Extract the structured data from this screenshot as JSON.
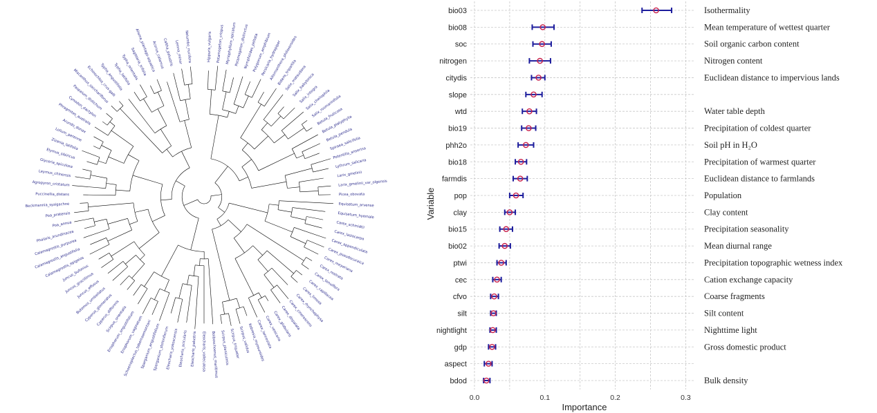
{
  "chart_data": [
    {
      "type": "tree",
      "layout": "circular",
      "label_color": "#2b2b8c",
      "branch_color": "#000000",
      "leaves": [
        "Hippuris_vulgaris",
        "Potamogeton_crispus",
        "Myriophyllum_spicatum",
        "Potamogeton_distinctus",
        "Nymphoides_peltata",
        "Polygonum_amphibium",
        "Persicaria_hydropiper",
        "Alternanthera_philoxeroides",
        "Bidens_tripartita",
        "Salix_matsudana",
        "Salix_babylonica",
        "Salix_integra",
        "Salix_cheilophila",
        "Salix_rosmarinifolia",
        "Betula_fruticosa",
        "Betula_platyphylla",
        "Betula_pendula",
        "Spiraea_salicifolia",
        "Potentilla_anserina",
        "Lythrum_salicaria",
        "Larix_gmelinii",
        "Larix_gmelinii_var_olgensis",
        "Picea_obovata",
        "Equisetum_arvense",
        "Equisetum_hyemale",
        "Carex_schmidtii",
        "Carex_lasiocarpa",
        "Carex_appendiculata",
        "Carex_pseudocuraica",
        "Carex_meyeriana",
        "Carex_rostrata",
        "Carex_tenuiflora",
        "Carex_capillacea",
        "Carex_limosa",
        "Carex_rhynchophysa",
        "Carex_cinerascens",
        "Carex_dispalata",
        "Carex_globularis",
        "Carex_vesicaria",
        "Carex_lanceolata",
        "Kobresia_myosuroides",
        "Scirpus_validus",
        "Scirpus_triqueter",
        "Scirpus_planiculmis",
        "Bolboschoenus_maritimus",
        "Eleocharis_valleculosa",
        "Eleocharis_palustris",
        "Eleocharis_acicularis",
        "Eleocharis_yokoscensis",
        "Sparganium_stoloniferum",
        "Sparganium_angustifolium",
        "Schoenoplectus_tabernaemontani",
        "Eriophorum_vaginatum",
        "Eriophorum_angustifolium",
        "Scirpus_orientalis",
        "Cyperus_difformis",
        "Cyperus_glomeratus",
        "Butomus_umbellatus",
        "Juncus_effusus",
        "Juncus_gracillimus",
        "Juncus_bufonius",
        "Calamagrostis_epigeios",
        "Calamagrostis_angustifolia",
        "Calamagrostis_purpurea",
        "Phalaris_arundinacea",
        "Poa_annua",
        "Poa_pratensis",
        "Beckmannia_syzigachne",
        "Puccinellia_distans",
        "Agropyron_cristatum",
        "Leymus_chinensis",
        "Glyceria_spiculosa",
        "Elymus_sibiricus",
        "Zizania_latifolia",
        "Lolium_perenne",
        "Arundo_donax",
        "Phragmites_australis",
        "Cynodon_dactylon",
        "Paspalum_distichum",
        "Miscanthus_sacchariflorus",
        "Echinochloa_crus-galli",
        "Typha_angustifolia",
        "Typha_latifolia",
        "Typha_orientalis",
        "Sagittaria_trifolia",
        "Alisma_plantago-aquatica",
        "Acorus_calamus",
        "Caltha_palustris",
        "Lemna_minor",
        "Nelumbo_nucifera"
      ]
    },
    {
      "type": "scatter",
      "variant": "dot-with-error-bars",
      "xlabel": "Importance",
      "ylabel": "Variable",
      "xlim": [
        0,
        0.31
      ],
      "xticks": [
        "0.0",
        "0.1",
        "0.2",
        "0.3"
      ],
      "xtick_values": [
        0,
        0.1,
        0.2,
        0.3
      ],
      "grid": true,
      "point_color": "#c8204a",
      "errorbar_color": "#1c1c9c",
      "categories": [
        "bio03",
        "bio08",
        "soc",
        "nitrogen",
        "citydis",
        "slope",
        "wtd",
        "bio19",
        "phh2o",
        "bio18",
        "farmdis",
        "pop",
        "clay",
        "bio15",
        "bio02",
        "ptwi",
        "cec",
        "cfvo",
        "silt",
        "nightlight",
        "gdp",
        "aspect",
        "bdod"
      ],
      "values": [
        0.258,
        0.097,
        0.096,
        0.093,
        0.091,
        0.084,
        0.078,
        0.077,
        0.073,
        0.066,
        0.065,
        0.059,
        0.05,
        0.045,
        0.043,
        0.038,
        0.032,
        0.028,
        0.027,
        0.026,
        0.025,
        0.02,
        0.017
      ],
      "lower": [
        0.238,
        0.082,
        0.083,
        0.078,
        0.081,
        0.073,
        0.068,
        0.067,
        0.062,
        0.058,
        0.055,
        0.05,
        0.043,
        0.036,
        0.035,
        0.032,
        0.026,
        0.023,
        0.023,
        0.022,
        0.02,
        0.014,
        0.013
      ],
      "upper": [
        0.28,
        0.113,
        0.109,
        0.108,
        0.1,
        0.096,
        0.088,
        0.087,
        0.084,
        0.074,
        0.075,
        0.069,
        0.058,
        0.054,
        0.051,
        0.045,
        0.038,
        0.034,
        0.031,
        0.031,
        0.03,
        0.025,
        0.022
      ],
      "descriptions": [
        "Isothermality",
        "Mean temperature of wettest quarter",
        "Soil organic carbon content",
        "Nitrogen content",
        "Euclidean distance to impervious lands",
        "",
        "Water table depth",
        "Precipitation of coldest quarter",
        "Soil pH in H₂O",
        "Precipitation of warmest quarter",
        "Euclidean distance to farmlands",
        "Population",
        "Clay content",
        "Precipitation seasonality",
        "Mean diurnal range",
        "Precipitation topographic wetness index",
        "Cation exchange capacity",
        "Coarse fragments",
        "Silt content",
        "Nighttime light",
        "Gross domestic product",
        "",
        "Bulk density"
      ]
    }
  ]
}
